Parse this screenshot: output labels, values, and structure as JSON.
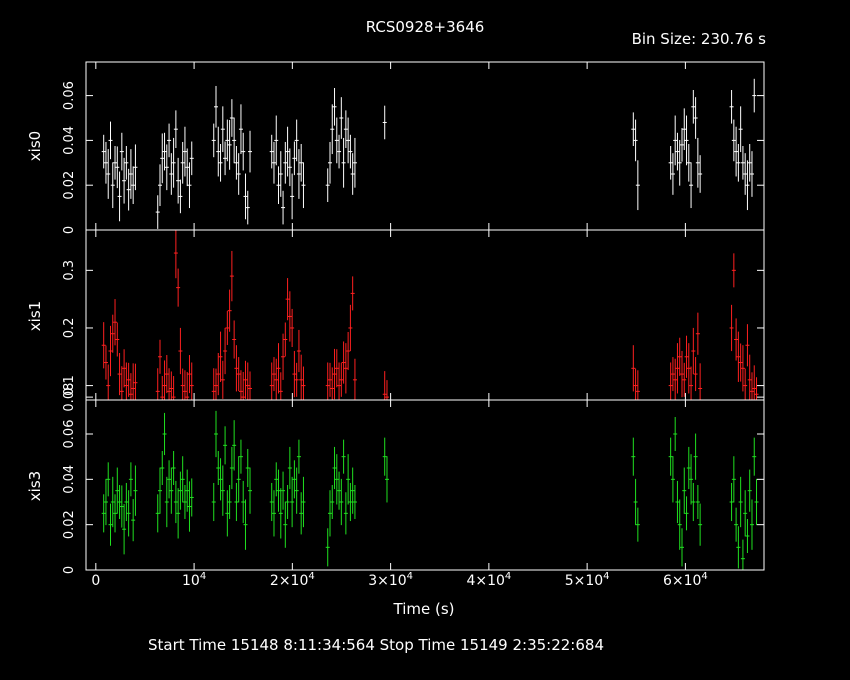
{
  "title": "RCS0928+3646",
  "bin_size_label": "Bin Size: 230.76 s",
  "footer": "Start Time 15148  8:11:34:564     Stop Time 15149  2:35:22:684",
  "colors": {
    "background": "#000000",
    "axes": "#ffffff",
    "xis0": "#ffffff",
    "xis1": "#ff2020",
    "xis3": "#20e020"
  },
  "chart_data": {
    "type": "scatter",
    "title": "RCS0928+3646",
    "xlabel": "Time (s)",
    "xlim": [
      -1000,
      68000
    ],
    "x_ticks": [
      {
        "value": 0,
        "label": "0",
        "exp": ""
      },
      {
        "value": 10000,
        "label": "10",
        "exp": "4"
      },
      {
        "value": 20000,
        "label": "2×10",
        "exp": "4"
      },
      {
        "value": 30000,
        "label": "3×10",
        "exp": "4"
      },
      {
        "value": 40000,
        "label": "4×10",
        "exp": "4"
      },
      {
        "value": 50000,
        "label": "5×10",
        "exp": "4"
      },
      {
        "value": 60000,
        "label": "6×10",
        "exp": "4"
      }
    ],
    "bin_size_s": 230.76,
    "panels": [
      {
        "name": "xis0",
        "ylabel": "xis0",
        "ylim": [
          0,
          0.075
        ],
        "yticks": [
          0,
          0.02,
          0.04,
          0.06
        ],
        "yticklabels": [
          "0",
          "0.02",
          "0.04",
          "0.06"
        ],
        "segments": [
          {
            "start": 800,
            "values": [
              0.035,
              0.03,
              0.025,
              0.04,
              0.02,
              0.03,
              0.028,
              0.015,
              0.035,
              0.022,
              0.03,
              0.018,
              0.025,
              0.02,
              0.028
            ]
          },
          {
            "start": 6300,
            "values": [
              0.008,
              0.02,
              0.032,
              0.035,
              0.028,
              0.04,
              0.025,
              0.03,
              0.045,
              0.022,
              0.015,
              0.03,
              0.035,
              0.028,
              0.02,
              0.032
            ]
          },
          {
            "start": 12000,
            "values": [
              0.04,
              0.055,
              0.035,
              0.03,
              0.045,
              0.032,
              0.04,
              0.038,
              0.05,
              0.04,
              0.03,
              0.025,
              0.045,
              0.035,
              0.015,
              0.01,
              0.035
            ]
          },
          {
            "start": 17900,
            "values": [
              0.035,
              0.03,
              0.04,
              0.02,
              0.025,
              0.01,
              0.03,
              0.035,
              0.028,
              0.015,
              0.032,
              0.04,
              0.025,
              0.03,
              0.02
            ]
          },
          {
            "start": 23600,
            "values": [
              0.02,
              0.03,
              0.045,
              0.055,
              0.04,
              0.035,
              0.05,
              0.03,
              0.045,
              0.04,
              0.035,
              0.025,
              0.03
            ]
          },
          {
            "start": 29400,
            "values": [
              0.048
            ]
          },
          {
            "start": 54700,
            "values": [
              0.045,
              0.04,
              0.02
            ]
          },
          {
            "start": 58500,
            "values": [
              0.03,
              0.025,
              0.04,
              0.035,
              0.03,
              0.038,
              0.045,
              0.04,
              0.03,
              0.02,
              0.055,
              0.05,
              0.03,
              0.025
            ]
          },
          {
            "start": 64700,
            "values": [
              0.055,
              0.04,
              0.035,
              0.03,
              0.045,
              0.03,
              0.025,
              0.02,
              0.03,
              0.025,
              0.06
            ]
          }
        ]
      },
      {
        "name": "xis1",
        "ylabel": "xis1",
        "ylim": [
          0.075,
          0.37
        ],
        "yticks": [
          0.08,
          0.1,
          0.2,
          0.3
        ],
        "yticklabels": [
          "0.08",
          "0.1",
          "0.2",
          "0.3"
        ],
        "segments": [
          {
            "start": 800,
            "values": [
              0.17,
              0.14,
              0.1,
              0.16,
              0.19,
              0.21,
              0.18,
              0.12,
              0.09,
              0.13,
              0.1,
              0.11,
              0.085,
              0.095,
              0.105
            ]
          },
          {
            "start": 6300,
            "values": [
              0.09,
              0.15,
              0.08,
              0.1,
              0.12,
              0.09,
              0.095,
              0.08,
              0.33,
              0.27,
              0.16,
              0.1,
              0.09,
              0.08,
              0.12,
              0.1
            ]
          },
          {
            "start": 12000,
            "values": [
              0.09,
              0.1,
              0.12,
              0.15,
              0.11,
              0.16,
              0.2,
              0.23,
              0.29,
              0.18,
              0.13,
              0.12,
              0.09,
              0.08,
              0.11,
              0.1,
              0.095
            ]
          },
          {
            "start": 17900,
            "values": [
              0.1,
              0.12,
              0.11,
              0.13,
              0.09,
              0.15,
              0.18,
              0.25,
              0.22,
              0.2,
              0.12,
              0.11,
              0.16,
              0.11,
              0.1
            ]
          },
          {
            "start": 23600,
            "values": [
              0.1,
              0.11,
              0.095,
              0.12,
              0.13,
              0.1,
              0.11,
              0.14,
              0.13,
              0.16,
              0.2,
              0.26,
              0.11
            ]
          },
          {
            "start": 29400,
            "values": [
              0.085,
              0.08
            ]
          },
          {
            "start": 54700,
            "values": [
              0.13,
              0.1,
              0.09
            ]
          },
          {
            "start": 58500,
            "values": [
              0.1,
              0.12,
              0.11,
              0.13,
              0.15,
              0.12,
              0.11,
              0.15,
              0.13,
              0.1,
              0.16,
              0.12,
              0.19,
              0.095
            ]
          },
          {
            "start": 64700,
            "values": [
              0.2,
              0.3,
              0.18,
              0.15,
              0.14,
              0.13,
              0.1,
              0.17,
              0.11,
              0.09,
              0.095,
              0.085
            ]
          }
        ]
      },
      {
        "name": "xis3",
        "ylabel": "xis3",
        "ylim": [
          0,
          0.075
        ],
        "yticks": [
          0,
          0.02,
          0.04,
          0.06
        ],
        "yticklabels": [
          "0",
          "0.02",
          "0.04",
          "0.06"
        ],
        "segments": [
          {
            "start": 800,
            "values": [
              0.025,
              0.03,
              0.04,
              0.02,
              0.03,
              0.025,
              0.035,
              0.03,
              0.028,
              0.018,
              0.03,
              0.025,
              0.04,
              0.022,
              0.035
            ]
          },
          {
            "start": 6300,
            "values": [
              0.025,
              0.035,
              0.045,
              0.06,
              0.03,
              0.04,
              0.035,
              0.045,
              0.03,
              0.025,
              0.035,
              0.04,
              0.03,
              0.035,
              0.028,
              0.032
            ]
          },
          {
            "start": 12000,
            "values": [
              0.03,
              0.06,
              0.045,
              0.04,
              0.035,
              0.055,
              0.025,
              0.03,
              0.045,
              0.055,
              0.03,
              0.04,
              0.05,
              0.03,
              0.02,
              0.045,
              0.035
            ]
          },
          {
            "start": 17900,
            "values": [
              0.03,
              0.025,
              0.04,
              0.035,
              0.025,
              0.035,
              0.02,
              0.03,
              0.045,
              0.03,
              0.04,
              0.035,
              0.05,
              0.025,
              0.03
            ]
          },
          {
            "start": 23600,
            "values": [
              0.01,
              0.025,
              0.03,
              0.045,
              0.04,
              0.035,
              0.03,
              0.05,
              0.025,
              0.04,
              0.03,
              0.035,
              0.03
            ]
          },
          {
            "start": 29400,
            "values": [
              0.05,
              0.04
            ]
          },
          {
            "start": 54700,
            "values": [
              0.05,
              0.03,
              0.02
            ]
          },
          {
            "start": 58500,
            "values": [
              0.05,
              0.04,
              0.06,
              0.03,
              0.02,
              0.01,
              0.035,
              0.025,
              0.045,
              0.04,
              0.03,
              0.05,
              0.03,
              0.02
            ]
          },
          {
            "start": 64700,
            "values": [
              0.03,
              0.04,
              0.02,
              0.01,
              0.03,
              0.005,
              0.025,
              0.015,
              0.035,
              0.02,
              0.05,
              0.03
            ]
          }
        ]
      }
    ]
  }
}
